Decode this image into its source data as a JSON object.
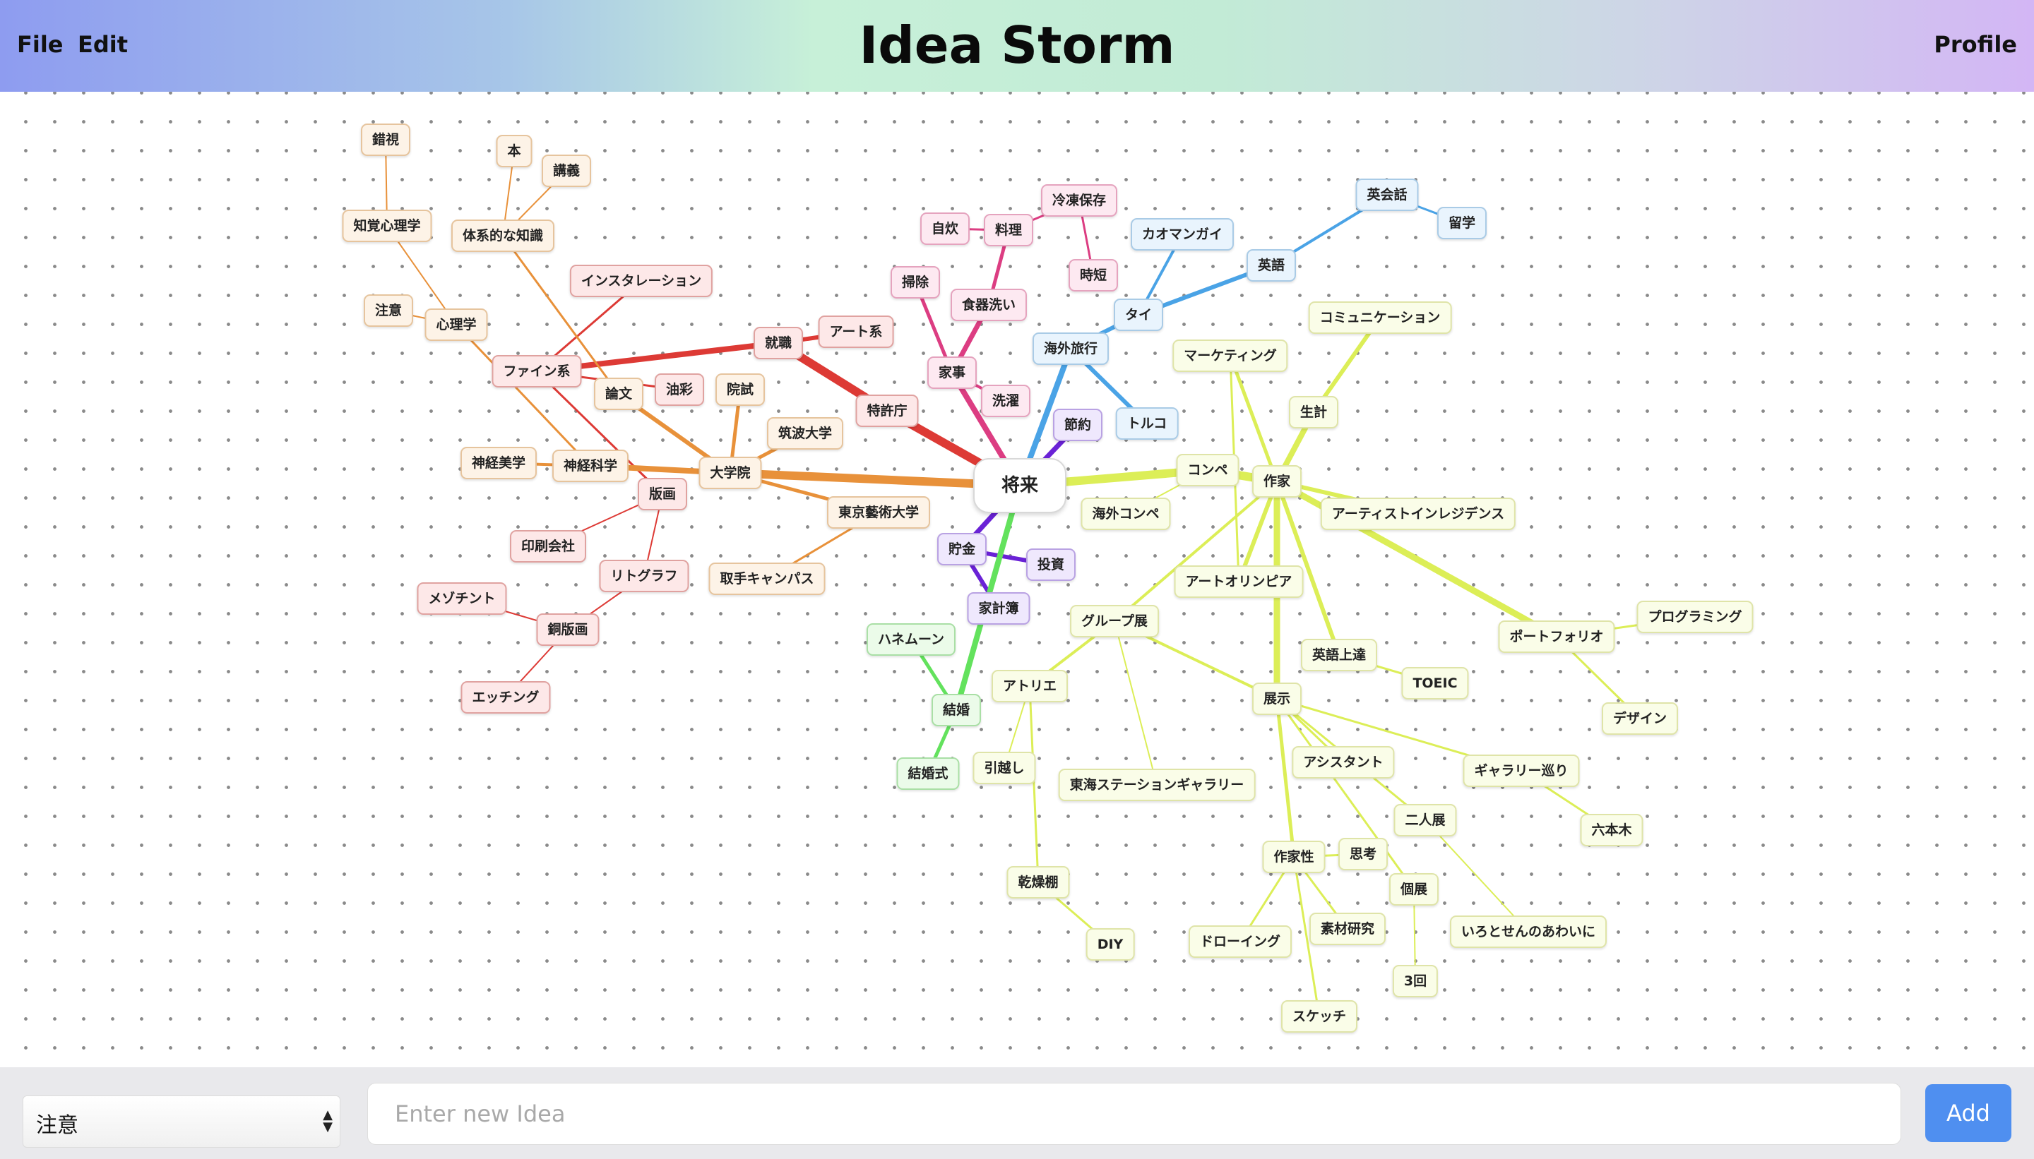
{
  "header": {
    "menu": [
      "File",
      "Edit"
    ],
    "title": "Idea Storm",
    "profile_label": "Profile"
  },
  "branch_colors": {
    "red": {
      "line": "#dd3a35",
      "fill": "#fde8e8",
      "border": "#e0a2a0"
    },
    "orange": {
      "line": "#e8913a",
      "fill": "#fdf3e7",
      "border": "#e6c49d"
    },
    "pink": {
      "line": "#dc3d82",
      "fill": "#fde9f1",
      "border": "#e5a3be"
    },
    "blue": {
      "line": "#4aa3e6",
      "fill": "#e9f4fd",
      "border": "#a9cbe6"
    },
    "purple": {
      "line": "#6a22d6",
      "fill": "#efe8fd",
      "border": "#b9a2e3"
    },
    "green": {
      "line": "#63e25d",
      "fill": "#ebfbe9",
      "border": "#a9dfa5"
    },
    "yellow": {
      "line": "#dcee57",
      "fill": "#fafde8",
      "border": "#dfe4a8"
    }
  },
  "nodes": [
    {
      "id": "root",
      "label": "将来",
      "color": "root"
    },
    {
      "id": "n1",
      "label": "就職",
      "color": "red"
    },
    {
      "id": "n2",
      "label": "アート系",
      "color": "red"
    },
    {
      "id": "n3",
      "label": "特許庁",
      "color": "red"
    },
    {
      "id": "n4",
      "label": "ファイン系",
      "color": "red"
    },
    {
      "id": "n5",
      "label": "インスタレーション",
      "color": "red"
    },
    {
      "id": "n6",
      "label": "油彩",
      "color": "red"
    },
    {
      "id": "n7",
      "label": "版画",
      "color": "red"
    },
    {
      "id": "n8",
      "label": "印刷会社",
      "color": "red"
    },
    {
      "id": "n9",
      "label": "リトグラフ",
      "color": "red"
    },
    {
      "id": "n10",
      "label": "銅版画",
      "color": "red"
    },
    {
      "id": "n11",
      "label": "メゾチント",
      "color": "red"
    },
    {
      "id": "n12",
      "label": "エッチング",
      "color": "red"
    },
    {
      "id": "n13",
      "label": "大学院",
      "color": "orange"
    },
    {
      "id": "n14",
      "label": "院試",
      "color": "orange"
    },
    {
      "id": "n15",
      "label": "筑波大学",
      "color": "orange"
    },
    {
      "id": "n16",
      "label": "東京藝術大学",
      "color": "orange"
    },
    {
      "id": "n17",
      "label": "取手キャンパス",
      "color": "orange"
    },
    {
      "id": "n18",
      "label": "論文",
      "color": "orange"
    },
    {
      "id": "n19",
      "label": "神経科学",
      "color": "orange"
    },
    {
      "id": "n20",
      "label": "神経美学",
      "color": "orange"
    },
    {
      "id": "n21",
      "label": "心理学",
      "color": "orange"
    },
    {
      "id": "n22",
      "label": "注意",
      "color": "orange"
    },
    {
      "id": "n23",
      "label": "知覚心理学",
      "color": "orange"
    },
    {
      "id": "n24",
      "label": "錯視",
      "color": "orange"
    },
    {
      "id": "n25",
      "label": "体系的な知識",
      "color": "orange"
    },
    {
      "id": "n26",
      "label": "本",
      "color": "orange"
    },
    {
      "id": "n27",
      "label": "講義",
      "color": "orange"
    },
    {
      "id": "n28",
      "label": "家事",
      "color": "pink"
    },
    {
      "id": "n29",
      "label": "掃除",
      "color": "pink"
    },
    {
      "id": "n30",
      "label": "洗濯",
      "color": "pink"
    },
    {
      "id": "n31",
      "label": "食器洗い",
      "color": "pink"
    },
    {
      "id": "n32",
      "label": "料理",
      "color": "pink"
    },
    {
      "id": "n33",
      "label": "自炊",
      "color": "pink"
    },
    {
      "id": "n34",
      "label": "冷凍保存",
      "color": "pink"
    },
    {
      "id": "n35",
      "label": "時短",
      "color": "pink"
    },
    {
      "id": "n36",
      "label": "海外旅行",
      "color": "blue"
    },
    {
      "id": "n37",
      "label": "タイ",
      "color": "blue"
    },
    {
      "id": "n38",
      "label": "カオマンガイ",
      "color": "blue"
    },
    {
      "id": "n39",
      "label": "英語",
      "color": "blue"
    },
    {
      "id": "n40",
      "label": "英会話",
      "color": "blue"
    },
    {
      "id": "n41",
      "label": "留学",
      "color": "blue"
    },
    {
      "id": "n42",
      "label": "トルコ",
      "color": "blue"
    },
    {
      "id": "n43",
      "label": "節約",
      "color": "purple"
    },
    {
      "id": "n44",
      "label": "貯金",
      "color": "purple"
    },
    {
      "id": "n45",
      "label": "投資",
      "color": "purple"
    },
    {
      "id": "n46",
      "label": "家計簿",
      "color": "purple"
    },
    {
      "id": "n47",
      "label": "結婚",
      "color": "green"
    },
    {
      "id": "n48",
      "label": "ハネムーン",
      "color": "green"
    },
    {
      "id": "n49",
      "label": "結婚式",
      "color": "green"
    },
    {
      "id": "n50",
      "label": "作家",
      "color": "yellow"
    },
    {
      "id": "n51",
      "label": "コンペ",
      "color": "yellow"
    },
    {
      "id": "n52",
      "label": "海外コンペ",
      "color": "yellow"
    },
    {
      "id": "n53",
      "label": "アートオリンピア",
      "color": "yellow"
    },
    {
      "id": "n54",
      "label": "生計",
      "color": "yellow"
    },
    {
      "id": "n55",
      "label": "コミュニケーション",
      "color": "yellow"
    },
    {
      "id": "n56",
      "label": "マーケティング",
      "color": "yellow"
    },
    {
      "id": "n57",
      "label": "アーティストインレジデンス",
      "color": "yellow"
    },
    {
      "id": "n58",
      "label": "ポートフォリオ",
      "color": "yellow"
    },
    {
      "id": "n59",
      "label": "プログラミング",
      "color": "yellow"
    },
    {
      "id": "n60",
      "label": "デザイン",
      "color": "yellow"
    },
    {
      "id": "n61",
      "label": "英語上達",
      "color": "yellow"
    },
    {
      "id": "n62",
      "label": "TOEIC",
      "color": "yellow"
    },
    {
      "id": "n63",
      "label": "グループ展",
      "color": "yellow"
    },
    {
      "id": "n64",
      "label": "アトリエ",
      "color": "yellow"
    },
    {
      "id": "n65",
      "label": "引越し",
      "color": "yellow"
    },
    {
      "id": "n66",
      "label": "乾燥棚",
      "color": "yellow"
    },
    {
      "id": "n67",
      "label": "DIY",
      "color": "yellow"
    },
    {
      "id": "n68",
      "label": "東海ステーションギャラリー",
      "color": "yellow"
    },
    {
      "id": "n69",
      "label": "展示",
      "color": "yellow"
    },
    {
      "id": "n70",
      "label": "アシスタント",
      "color": "yellow"
    },
    {
      "id": "n71",
      "label": "ギャラリー巡り",
      "color": "yellow"
    },
    {
      "id": "n72",
      "label": "六本木",
      "color": "yellow"
    },
    {
      "id": "n73",
      "label": "二人展",
      "color": "yellow"
    },
    {
      "id": "n74",
      "label": "いろとせんのあわいに",
      "color": "yellow"
    },
    {
      "id": "n75",
      "label": "個展",
      "color": "yellow"
    },
    {
      "id": "n76",
      "label": "3回",
      "color": "yellow"
    },
    {
      "id": "n77",
      "label": "作家性",
      "color": "yellow"
    },
    {
      "id": "n78",
      "label": "思考",
      "color": "yellow"
    },
    {
      "id": "n79",
      "label": "ドローイング",
      "color": "yellow"
    },
    {
      "id": "n80",
      "label": "素材研究",
      "color": "yellow"
    },
    {
      "id": "n81",
      "label": "スケッチ",
      "color": "yellow"
    }
  ],
  "edges": [
    [
      "root",
      "n3",
      "red",
      12
    ],
    [
      "n3",
      "n1",
      "red",
      12
    ],
    [
      "n1",
      "n2",
      "red",
      6
    ],
    [
      "n1",
      "n4",
      "red",
      8
    ],
    [
      "n4",
      "n5",
      "red",
      3
    ],
    [
      "n4",
      "n6",
      "red",
      3
    ],
    [
      "n4",
      "n7",
      "red",
      3
    ],
    [
      "n7",
      "n8",
      "red",
      2
    ],
    [
      "n7",
      "n9",
      "red",
      2
    ],
    [
      "n9",
      "n10",
      "red",
      2
    ],
    [
      "n10",
      "n11",
      "red",
      2
    ],
    [
      "n10",
      "n12",
      "red",
      2
    ],
    [
      "root",
      "n13",
      "orange",
      12
    ],
    [
      "n13",
      "n14",
      "orange",
      5
    ],
    [
      "n13",
      "n15",
      "orange",
      5
    ],
    [
      "n13",
      "n16",
      "orange",
      5
    ],
    [
      "n16",
      "n17",
      "orange",
      3
    ],
    [
      "n13",
      "n18",
      "orange",
      6
    ],
    [
      "n13",
      "n19",
      "orange",
      8
    ],
    [
      "n19",
      "n20",
      "orange",
      4
    ],
    [
      "n19",
      "n21",
      "orange",
      3
    ],
    [
      "n21",
      "n22",
      "orange",
      2
    ],
    [
      "n21",
      "n23",
      "orange",
      2
    ],
    [
      "n23",
      "n24",
      "orange",
      2
    ],
    [
      "n18",
      "n25",
      "orange",
      3
    ],
    [
      "n25",
      "n26",
      "orange",
      2
    ],
    [
      "n25",
      "n27",
      "orange",
      2
    ],
    [
      "root",
      "n28",
      "pink",
      8
    ],
    [
      "n28",
      "n29",
      "pink",
      5
    ],
    [
      "n28",
      "n30",
      "pink",
      4
    ],
    [
      "n28",
      "n31",
      "pink",
      7
    ],
    [
      "n31",
      "n32",
      "pink",
      5
    ],
    [
      "n32",
      "n33",
      "pink",
      3
    ],
    [
      "n32",
      "n34",
      "pink",
      3
    ],
    [
      "n34",
      "n35",
      "pink",
      3
    ],
    [
      "root",
      "n36",
      "blue",
      8
    ],
    [
      "n36",
      "n37",
      "blue",
      6
    ],
    [
      "n37",
      "n38",
      "blue",
      4
    ],
    [
      "n37",
      "n39",
      "blue",
      6
    ],
    [
      "n39",
      "n40",
      "blue",
      4
    ],
    [
      "n40",
      "n41",
      "blue",
      3
    ],
    [
      "n36",
      "n42",
      "blue",
      6
    ],
    [
      "root",
      "n43",
      "purple",
      7
    ],
    [
      "root",
      "n44",
      "purple",
      7
    ],
    [
      "n44",
      "n45",
      "purple",
      6
    ],
    [
      "n44",
      "n46",
      "purple",
      6
    ],
    [
      "root",
      "n47",
      "green",
      8
    ],
    [
      "n47",
      "n48",
      "green",
      5
    ],
    [
      "n47",
      "n49",
      "green",
      5
    ],
    [
      "root",
      "n51",
      "yellow",
      12
    ],
    [
      "n51",
      "n50",
      "yellow",
      12
    ],
    [
      "n51",
      "n52",
      "yellow",
      2
    ],
    [
      "n50",
      "n54",
      "yellow",
      8
    ],
    [
      "n54",
      "n55",
      "yellow",
      6
    ],
    [
      "n50",
      "n56",
      "yellow",
      5
    ],
    [
      "n50",
      "n57",
      "yellow",
      6
    ],
    [
      "n50",
      "n58",
      "yellow",
      9
    ],
    [
      "n58",
      "n59",
      "yellow",
      3
    ],
    [
      "n58",
      "n60",
      "yellow",
      3
    ],
    [
      "n50",
      "n53",
      "yellow",
      6
    ],
    [
      "n56",
      "n53",
      "yellow",
      3
    ],
    [
      "n50",
      "n61",
      "yellow",
      6
    ],
    [
      "n61",
      "n62",
      "yellow",
      3
    ],
    [
      "n50",
      "n63",
      "yellow",
      4
    ],
    [
      "n50",
      "n69",
      "yellow",
      9
    ],
    [
      "n63",
      "n64",
      "yellow",
      4
    ],
    [
      "n64",
      "n65",
      "yellow",
      2
    ],
    [
      "n64",
      "n66",
      "yellow",
      3
    ],
    [
      "n66",
      "n67",
      "yellow",
      3
    ],
    [
      "n63",
      "n68",
      "yellow",
      2
    ],
    [
      "n63",
      "n69",
      "yellow",
      4
    ],
    [
      "n69",
      "n70",
      "yellow",
      3
    ],
    [
      "n69",
      "n71",
      "yellow",
      3
    ],
    [
      "n71",
      "n72",
      "yellow",
      3
    ],
    [
      "n69",
      "n73",
      "yellow",
      3
    ],
    [
      "n73",
      "n74",
      "yellow",
      2
    ],
    [
      "n69",
      "n75",
      "yellow",
      3
    ],
    [
      "n75",
      "n76",
      "yellow",
      2
    ],
    [
      "n69",
      "n77",
      "yellow",
      5
    ],
    [
      "n77",
      "n78",
      "yellow",
      3
    ],
    [
      "n77",
      "n79",
      "yellow",
      3
    ],
    [
      "n77",
      "n80",
      "yellow",
      3
    ],
    [
      "n77",
      "n81",
      "yellow",
      3
    ]
  ],
  "bottom": {
    "category_value": "注意",
    "input_placeholder": "Enter new Idea",
    "add_label": "Add"
  }
}
